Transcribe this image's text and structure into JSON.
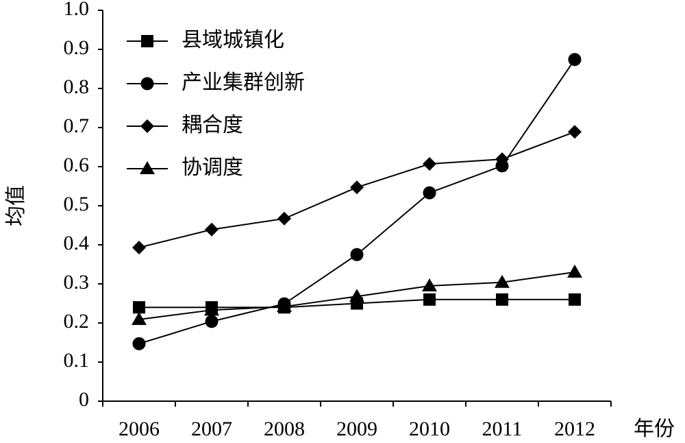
{
  "chart_data": {
    "type": "line",
    "x_label": "年份",
    "y_label": "均值",
    "categories": [
      "2006",
      "2007",
      "2008",
      "2009",
      "2010",
      "2011",
      "2012"
    ],
    "series": [
      {
        "name": "县域城镇化",
        "color": "#000000",
        "marker": "square",
        "values": [
          0.24,
          0.24,
          0.24,
          0.25,
          0.26,
          0.26,
          0.26
        ]
      },
      {
        "name": "产业集群创新",
        "color": "#000000",
        "marker": "circle",
        "values": [
          0.147,
          0.204,
          0.249,
          0.375,
          0.533,
          0.602,
          0.874
        ]
      },
      {
        "name": "耦合度",
        "color": "#000000",
        "marker": "diamond",
        "values": [
          0.393,
          0.439,
          0.467,
          0.547,
          0.607,
          0.619,
          0.689
        ]
      },
      {
        "name": "协调度",
        "color": "#000000",
        "marker": "triangle",
        "values": [
          0.209,
          0.233,
          0.242,
          0.268,
          0.295,
          0.304,
          0.33
        ]
      }
    ],
    "ylim": [
      0,
      1
    ],
    "yticks": [
      0,
      0.1,
      0.2,
      0.3,
      0.4,
      0.5,
      0.6,
      0.7,
      0.8,
      0.9,
      {
        "value": 1,
        "label": "1.0"
      }
    ],
    "legend": "top-left",
    "grid": false
  }
}
